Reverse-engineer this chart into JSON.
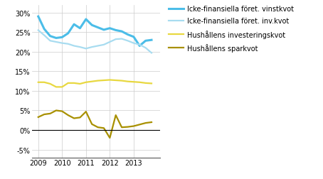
{
  "series": {
    "vinstkvot": {
      "label": "Icke-finansiella föret. vinstkvot",
      "color": "#4BBDE8",
      "linewidth": 2.2,
      "x": [
        2009.0,
        2009.25,
        2009.5,
        2009.75,
        2010.0,
        2010.25,
        2010.5,
        2010.75,
        2011.0,
        2011.25,
        2011.5,
        2011.75,
        2012.0,
        2012.25,
        2012.5,
        2012.75,
        2013.0,
        2013.25,
        2013.5,
        2013.75
      ],
      "y": [
        0.29,
        0.258,
        0.24,
        0.235,
        0.237,
        0.247,
        0.27,
        0.26,
        0.283,
        0.268,
        0.262,
        0.256,
        0.26,
        0.255,
        0.252,
        0.244,
        0.238,
        0.215,
        0.228,
        0.23
      ]
    },
    "invkvot": {
      "label": "Icke-finansiella föret. inv.kvot",
      "color": "#A8DCF0",
      "linewidth": 1.6,
      "x": [
        2009.0,
        2009.25,
        2009.5,
        2009.75,
        2010.0,
        2010.25,
        2010.5,
        2010.75,
        2011.0,
        2011.25,
        2011.5,
        2011.75,
        2012.0,
        2012.25,
        2012.5,
        2012.75,
        2013.0,
        2013.25,
        2013.5,
        2013.75
      ],
      "y": [
        0.255,
        0.242,
        0.228,
        0.225,
        0.222,
        0.22,
        0.215,
        0.212,
        0.208,
        0.212,
        0.215,
        0.218,
        0.225,
        0.232,
        0.233,
        0.228,
        0.222,
        0.218,
        0.21,
        0.197
      ]
    },
    "hushall_inv": {
      "label": "Hushållens investeringskvot",
      "color": "#E8D840",
      "linewidth": 1.6,
      "x": [
        2009.0,
        2009.25,
        2009.5,
        2009.75,
        2010.0,
        2010.25,
        2010.5,
        2010.75,
        2011.0,
        2011.25,
        2011.5,
        2011.75,
        2012.0,
        2012.25,
        2012.5,
        2012.75,
        2013.0,
        2013.25,
        2013.5,
        2013.75
      ],
      "y": [
        0.122,
        0.122,
        0.118,
        0.11,
        0.11,
        0.12,
        0.12,
        0.118,
        0.122,
        0.124,
        0.126,
        0.127,
        0.128,
        0.127,
        0.126,
        0.124,
        0.123,
        0.122,
        0.12,
        0.119
      ]
    },
    "sparkvot": {
      "label": "Hushållens sparkvot",
      "color": "#A89000",
      "linewidth": 1.6,
      "x": [
        2009.0,
        2009.25,
        2009.5,
        2009.75,
        2010.0,
        2010.25,
        2010.5,
        2010.75,
        2011.0,
        2011.25,
        2011.5,
        2011.75,
        2012.0,
        2012.25,
        2012.5,
        2012.75,
        2013.0,
        2013.25,
        2013.5,
        2013.75
      ],
      "y": [
        0.033,
        0.04,
        0.042,
        0.05,
        0.048,
        0.038,
        0.03,
        0.032,
        0.047,
        0.015,
        0.007,
        0.005,
        -0.02,
        0.038,
        0.007,
        0.008,
        0.01,
        0.014,
        0.018,
        0.02
      ]
    }
  },
  "ylim": [
    -0.07,
    0.32
  ],
  "yticks": [
    -0.05,
    0.0,
    0.05,
    0.1,
    0.15,
    0.2,
    0.25,
    0.3
  ],
  "xticks": [
    2009,
    2010,
    2011,
    2012,
    2013
  ],
  "xlim": [
    2008.75,
    2014.1
  ],
  "grid_color": "#cccccc",
  "background_color": "#ffffff",
  "tick_labelsize": 7.0,
  "legend_fontsize": 7.0
}
